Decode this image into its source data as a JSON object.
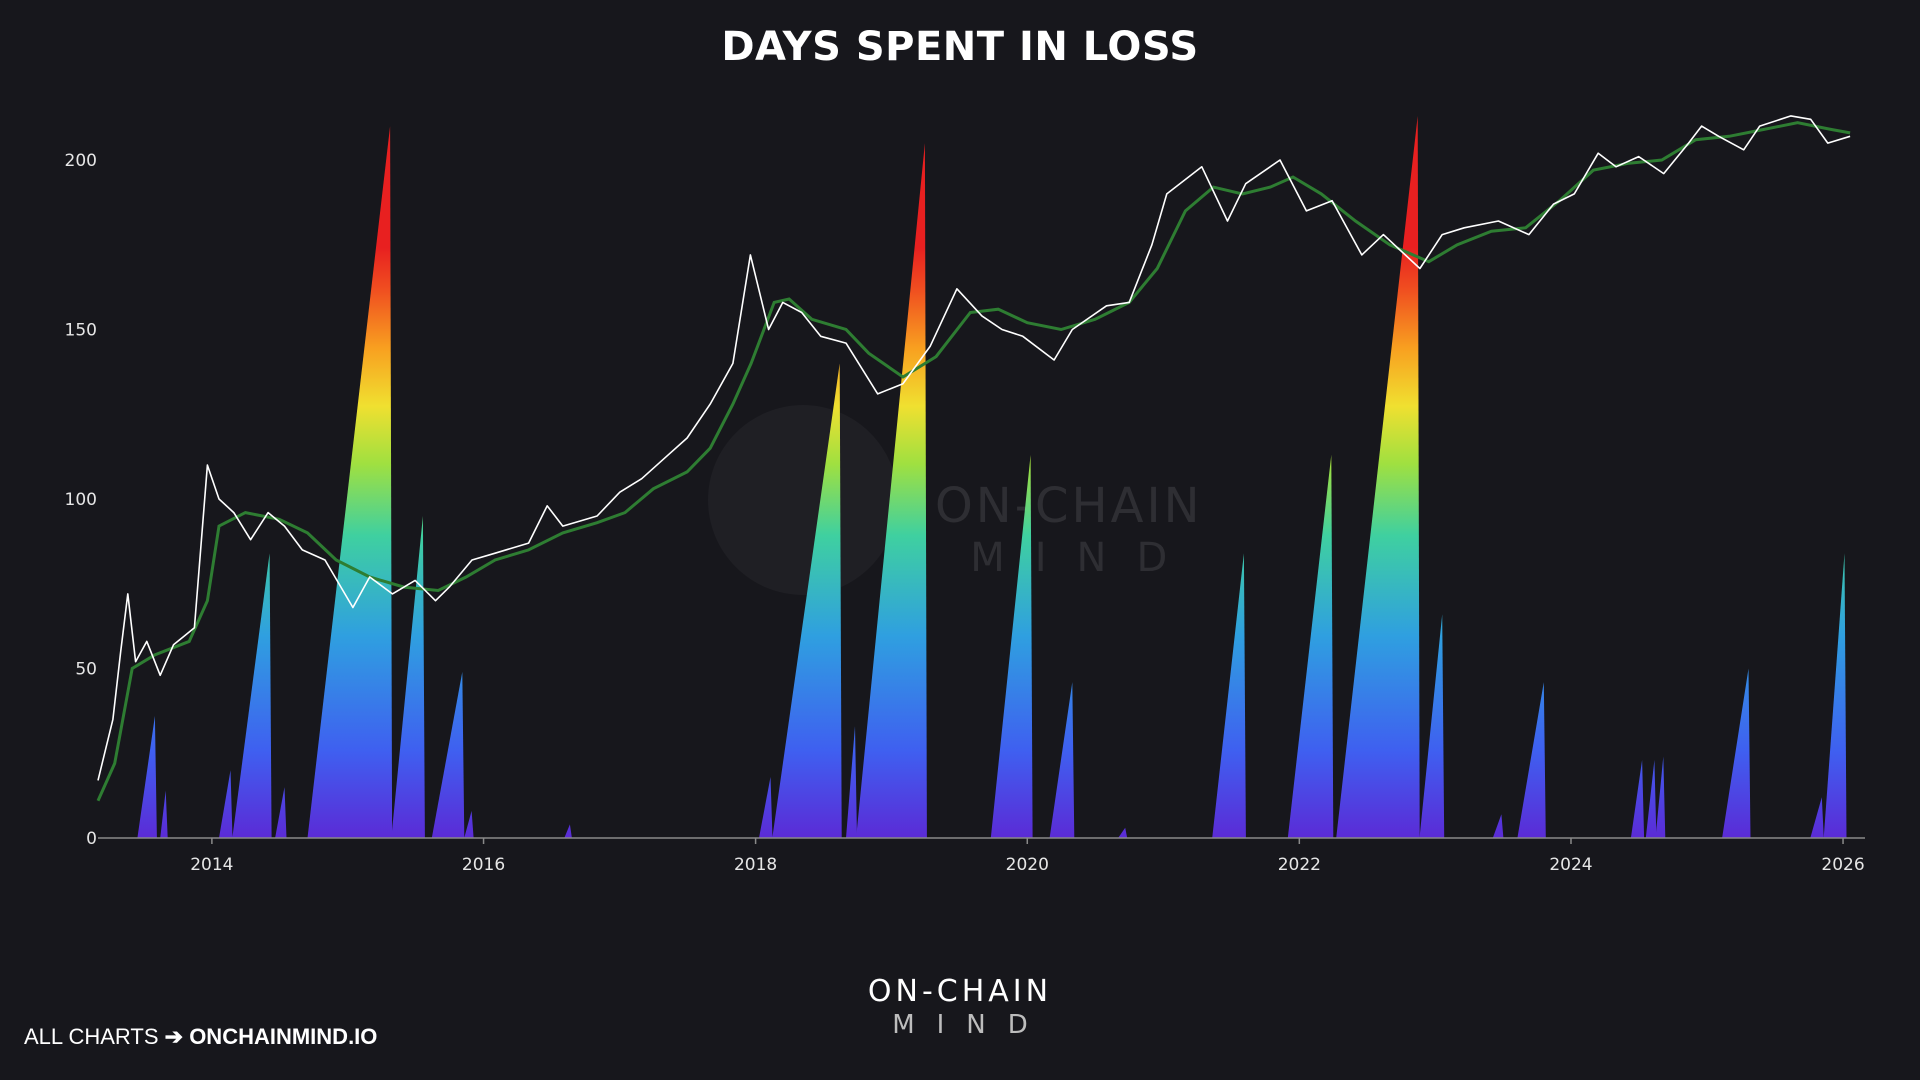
{
  "title": "DAYS SPENT IN LOSS",
  "footer": {
    "prefix": "ALL CHARTS",
    "arrow": "➔",
    "brand": "ONCHAINMIND.IO"
  },
  "logo": {
    "line1": "ON-CHAIN",
    "line2": "MIND"
  },
  "watermark": {
    "line1": "ON-CHAIN",
    "line2": "MIND"
  },
  "colors": {
    "background": "#17171c",
    "price_line": "#ffffff",
    "moving_average": "#2e7d32",
    "axis": "#8a8a8a",
    "spike_low": "#5b2bd6",
    "spike_high": "#e82020"
  },
  "chart_data": {
    "type": "area",
    "y_scale": "log",
    "xlim": [
      "2013-03-01",
      "2026-03-01"
    ],
    "ylim": [
      0,
      200
    ],
    "x_ticks": [
      "2014",
      "2016",
      "2018",
      "2020",
      "2022",
      "2024",
      "2026"
    ],
    "y_ticks": [
      "0",
      "50",
      "100",
      "150",
      "200"
    ],
    "grid": false,
    "legend": "none",
    "days_in_loss_spikes": [
      {
        "start": "2013-06-15",
        "peak": "2013-08-01",
        "peak_value": 36
      },
      {
        "start": "2013-08-15",
        "peak": "2013-08-30",
        "peak_value": 14
      },
      {
        "start": "2014-01-20",
        "peak": "2014-02-20",
        "peak_value": 20
      },
      {
        "start": "2014-02-25",
        "peak": "2014-06-05",
        "peak_value": 84
      },
      {
        "start": "2014-06-20",
        "peak": "2014-07-15",
        "peak_value": 15
      },
      {
        "start": "2014-09-15",
        "peak": "2015-04-25",
        "peak_value": 210
      },
      {
        "start": "2015-04-28",
        "peak": "2015-07-22",
        "peak_value": 95
      },
      {
        "start": "2015-08-15",
        "peak": "2015-11-05",
        "peak_value": 49
      },
      {
        "start": "2015-11-10",
        "peak": "2015-11-30",
        "peak_value": 8
      },
      {
        "start": "2016-08-05",
        "peak": "2016-08-20",
        "peak_value": 4
      },
      {
        "start": "2018-01-10",
        "peak": "2018-02-10",
        "peak_value": 18
      },
      {
        "start": "2018-02-15",
        "peak": "2018-08-15",
        "peak_value": 140
      },
      {
        "start": "2018-09-01",
        "peak": "2018-09-25",
        "peak_value": 33
      },
      {
        "start": "2018-09-28",
        "peak": "2019-04-01",
        "peak_value": 205
      },
      {
        "start": "2019-09-25",
        "peak": "2020-01-10",
        "peak_value": 113
      },
      {
        "start": "2020-03-01",
        "peak": "2020-05-01",
        "peak_value": 46
      },
      {
        "start": "2020-09-01",
        "peak": "2020-09-20",
        "peak_value": 3
      },
      {
        "start": "2021-05-12",
        "peak": "2021-08-05",
        "peak_value": 84
      },
      {
        "start": "2021-12-01",
        "peak": "2022-03-28",
        "peak_value": 113
      },
      {
        "start": "2022-04-10",
        "peak": "2022-11-15",
        "peak_value": 213
      },
      {
        "start": "2022-11-20",
        "peak": "2023-01-20",
        "peak_value": 66
      },
      {
        "start": "2023-06-05",
        "peak": "2023-06-28",
        "peak_value": 7
      },
      {
        "start": "2023-08-10",
        "peak": "2023-10-20",
        "peak_value": 46
      },
      {
        "start": "2024-06-10",
        "peak": "2024-07-10",
        "peak_value": 23
      },
      {
        "start": "2024-07-20",
        "peak": "2024-08-12",
        "peak_value": 23
      },
      {
        "start": "2024-08-15",
        "peak": "2024-09-05",
        "peak_value": 24
      },
      {
        "start": "2025-02-10",
        "peak": "2025-04-22",
        "peak_value": 50
      },
      {
        "start": "2025-10-05",
        "peak": "2025-11-05",
        "peak_value": 12
      },
      {
        "start": "2025-11-10",
        "peak": "2026-01-05",
        "peak_value": 84
      }
    ],
    "price_line": [
      [
        "2013-03-01",
        17
      ],
      [
        "2013-04-10",
        35
      ],
      [
        "2013-05-01",
        55
      ],
      [
        "2013-05-20",
        72
      ],
      [
        "2013-06-10",
        52
      ],
      [
        "2013-07-10",
        58
      ],
      [
        "2013-08-15",
        48
      ],
      [
        "2013-09-20",
        57
      ],
      [
        "2013-11-15",
        62
      ],
      [
        "2013-12-20",
        110
      ],
      [
        "2014-01-20",
        100
      ],
      [
        "2014-03-01",
        96
      ],
      [
        "2014-04-15",
        88
      ],
      [
        "2014-06-01",
        96
      ],
      [
        "2014-07-15",
        92
      ],
      [
        "2014-09-01",
        85
      ],
      [
        "2014-11-01",
        82
      ],
      [
        "2015-01-15",
        68
      ],
      [
        "2015-03-01",
        77
      ],
      [
        "2015-05-01",
        72
      ],
      [
        "2015-07-01",
        76
      ],
      [
        "2015-08-25",
        70
      ],
      [
        "2015-10-01",
        74
      ],
      [
        "2015-12-01",
        82
      ],
      [
        "2016-02-01",
        84
      ],
      [
        "2016-05-01",
        87
      ],
      [
        "2016-06-20",
        98
      ],
      [
        "2016-08-01",
        92
      ],
      [
        "2016-11-01",
        95
      ],
      [
        "2017-01-01",
        102
      ],
      [
        "2017-03-01",
        106
      ],
      [
        "2017-05-01",
        112
      ],
      [
        "2017-07-01",
        118
      ],
      [
        "2017-09-01",
        128
      ],
      [
        "2017-11-01",
        140
      ],
      [
        "2017-12-18",
        172
      ],
      [
        "2018-02-05",
        150
      ],
      [
        "2018-03-15",
        158
      ],
      [
        "2018-05-05",
        155
      ],
      [
        "2018-06-25",
        148
      ],
      [
        "2018-09-01",
        146
      ],
      [
        "2018-11-25",
        131
      ],
      [
        "2019-02-01",
        134
      ],
      [
        "2019-04-15",
        145
      ],
      [
        "2019-06-26",
        162
      ],
      [
        "2019-09-01",
        154
      ],
      [
        "2019-10-25",
        150
      ],
      [
        "2019-12-20",
        148
      ],
      [
        "2020-03-13",
        141
      ],
      [
        "2020-05-01",
        150
      ],
      [
        "2020-08-01",
        157
      ],
      [
        "2020-10-01",
        158
      ],
      [
        "2020-12-01",
        175
      ],
      [
        "2021-01-10",
        190
      ],
      [
        "2021-04-14",
        198
      ],
      [
        "2021-06-22",
        182
      ],
      [
        "2021-08-10",
        193
      ],
      [
        "2021-11-10",
        200
      ],
      [
        "2022-01-20",
        185
      ],
      [
        "2022-03-30",
        188
      ],
      [
        "2022-06-18",
        172
      ],
      [
        "2022-08-15",
        178
      ],
      [
        "2022-11-21",
        168
      ],
      [
        "2023-01-20",
        178
      ],
      [
        "2023-03-20",
        180
      ],
      [
        "2023-06-20",
        182
      ],
      [
        "2023-09-10",
        178
      ],
      [
        "2023-11-15",
        187
      ],
      [
        "2024-01-10",
        190
      ],
      [
        "2024-03-14",
        202
      ],
      [
        "2024-05-01",
        198
      ],
      [
        "2024-07-01",
        201
      ],
      [
        "2024-09-06",
        196
      ],
      [
        "2024-11-12",
        205
      ],
      [
        "2024-12-17",
        210
      ],
      [
        "2025-02-01",
        207
      ],
      [
        "2025-04-09",
        203
      ],
      [
        "2025-05-22",
        210
      ],
      [
        "2025-08-14",
        213
      ],
      [
        "2025-10-06",
        212
      ],
      [
        "2025-11-21",
        205
      ],
      [
        "2026-01-20",
        207
      ]
    ],
    "moving_average_line": [
      [
        "2013-03-01",
        11
      ],
      [
        "2013-04-15",
        22
      ],
      [
        "2013-06-01",
        50
      ],
      [
        "2013-08-01",
        54
      ],
      [
        "2013-11-01",
        58
      ],
      [
        "2013-12-20",
        70
      ],
      [
        "2014-01-20",
        92
      ],
      [
        "2014-04-01",
        96
      ],
      [
        "2014-07-01",
        94
      ],
      [
        "2014-09-15",
        90
      ],
      [
        "2014-12-01",
        82
      ],
      [
        "2015-03-01",
        77
      ],
      [
        "2015-06-01",
        74
      ],
      [
        "2015-09-01",
        73
      ],
      [
        "2015-11-15",
        77
      ],
      [
        "2016-02-01",
        82
      ],
      [
        "2016-05-01",
        85
      ],
      [
        "2016-08-01",
        90
      ],
      [
        "2016-11-01",
        93
      ],
      [
        "2017-01-15",
        96
      ],
      [
        "2017-04-01",
        103
      ],
      [
        "2017-07-01",
        108
      ],
      [
        "2017-09-01",
        115
      ],
      [
        "2017-11-01",
        128
      ],
      [
        "2017-12-20",
        140
      ],
      [
        "2018-02-20",
        158
      ],
      [
        "2018-04-01",
        159
      ],
      [
        "2018-06-01",
        153
      ],
      [
        "2018-09-01",
        150
      ],
      [
        "2018-11-01",
        143
      ],
      [
        "2019-02-01",
        136
      ],
      [
        "2019-05-01",
        142
      ],
      [
        "2019-08-01",
        155
      ],
      [
        "2019-10-15",
        156
      ],
      [
        "2020-01-01",
        152
      ],
      [
        "2020-04-01",
        150
      ],
      [
        "2020-07-01",
        153
      ],
      [
        "2020-10-01",
        158
      ],
      [
        "2020-12-15",
        168
      ],
      [
        "2021-03-01",
        185
      ],
      [
        "2021-05-15",
        192
      ],
      [
        "2021-08-01",
        190
      ],
      [
        "2021-10-15",
        192
      ],
      [
        "2021-12-15",
        195
      ],
      [
        "2022-03-01",
        190
      ],
      [
        "2022-06-01",
        182
      ],
      [
        "2022-09-01",
        175
      ],
      [
        "2022-12-15",
        170
      ],
      [
        "2023-03-01",
        175
      ],
      [
        "2023-06-01",
        179
      ],
      [
        "2023-09-01",
        180
      ],
      [
        "2023-12-01",
        188
      ],
      [
        "2024-03-01",
        197
      ],
      [
        "2024-06-01",
        199
      ],
      [
        "2024-09-01",
        200
      ],
      [
        "2024-12-01",
        206
      ],
      [
        "2025-03-01",
        207
      ],
      [
        "2025-06-01",
        209
      ],
      [
        "2025-09-01",
        211
      ],
      [
        "2025-12-01",
        209
      ],
      [
        "2026-01-20",
        208
      ]
    ]
  }
}
